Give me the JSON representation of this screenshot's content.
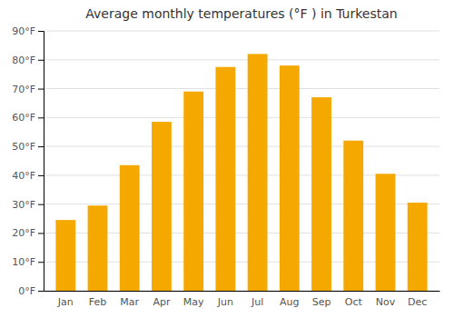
{
  "chart_data": {
    "type": "bar",
    "title": "Average monthly temperatures (°F ) in Turkestan",
    "categories": [
      "Jan",
      "Feb",
      "Mar",
      "Apr",
      "May",
      "Jun",
      "Jul",
      "Aug",
      "Sep",
      "Oct",
      "Nov",
      "Dec"
    ],
    "values": [
      24.5,
      29.5,
      43.5,
      58.5,
      69.0,
      77.5,
      82.0,
      78.0,
      67.0,
      52.0,
      40.5,
      30.5
    ],
    "color": "#F5A800",
    "ylim": [
      0,
      90
    ],
    "yticks": [
      {
        "value": 0,
        "label": "0°F"
      },
      {
        "value": 10,
        "label": "10°F"
      },
      {
        "value": 20,
        "label": "20°F"
      },
      {
        "value": 30,
        "label": "30°F"
      },
      {
        "value": 40,
        "label": "40°F"
      },
      {
        "value": 50,
        "label": "50°F"
      },
      {
        "value": 60,
        "label": "60°F"
      },
      {
        "value": 70,
        "label": "70°F"
      },
      {
        "value": 80,
        "label": "80°F"
      },
      {
        "value": 90,
        "label": "90°F"
      }
    ],
    "grid": true
  }
}
